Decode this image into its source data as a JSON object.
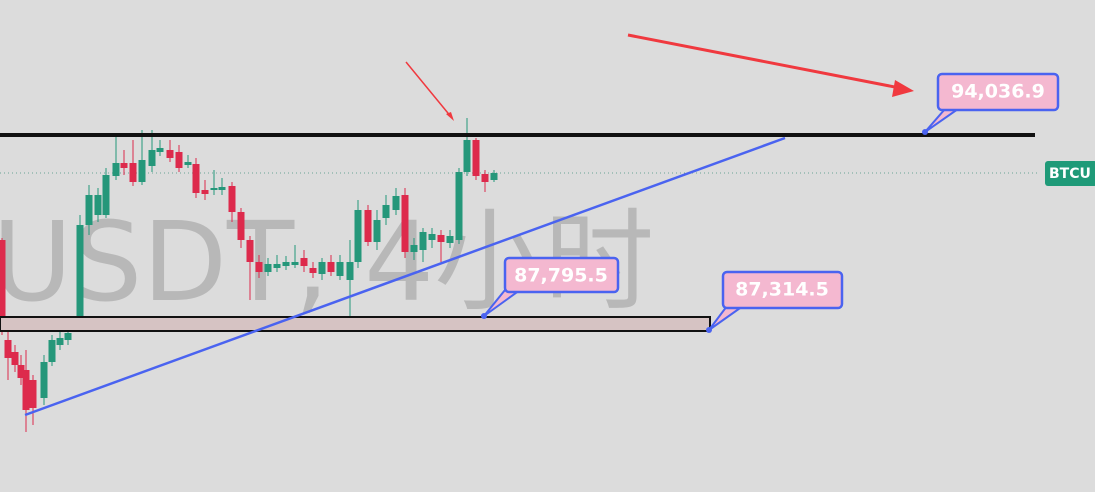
{
  "watermark": "USDT, 4小时",
  "symbol_tag": "BTCU",
  "price_labels": [
    "94,036.9",
    "87,795.5",
    "87,314.5"
  ]
}
